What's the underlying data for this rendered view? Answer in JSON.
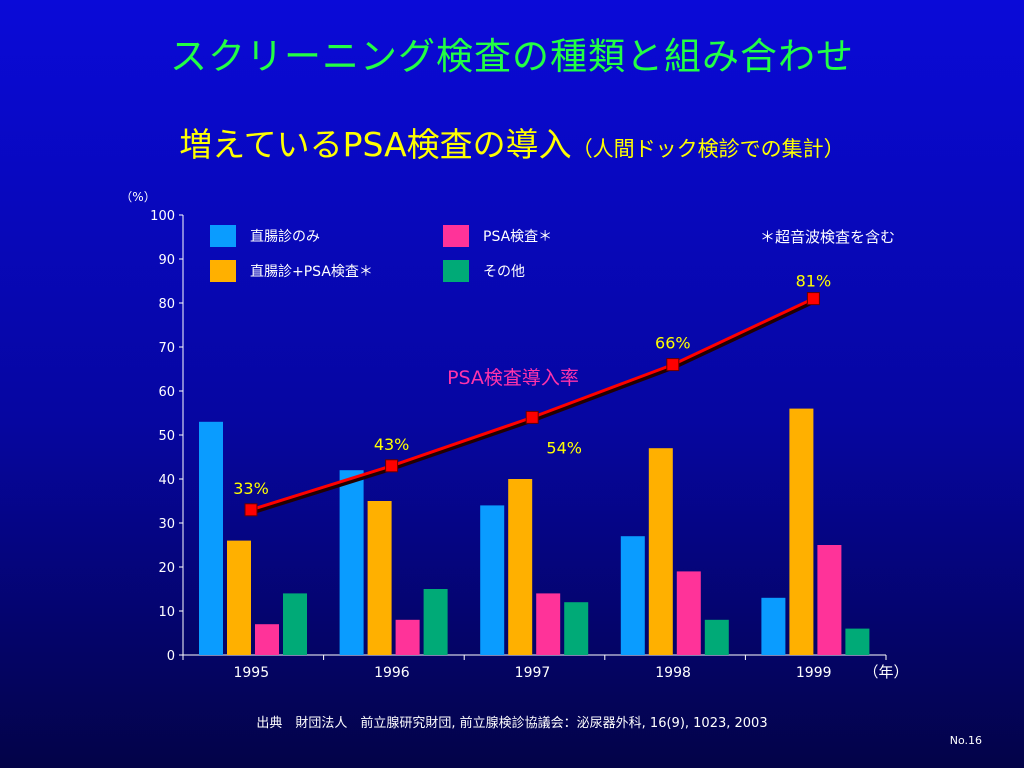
{
  "slide": {
    "title": "スクリーニング検査の種類と組み合わせ",
    "subtitle_main": "増えているPSA検査の導入",
    "subtitle_note": "（人間ドック検診での集計）",
    "source": "出典　財団法人　前立腺研究財団, 前立腺検診協議会：泌尿器外科, 16(9), 1023, 2003",
    "page_number": "No.16"
  },
  "chart_data": {
    "type": "bar",
    "categories": [
      "1995",
      "1996",
      "1997",
      "1998",
      "1999"
    ],
    "series": [
      {
        "name": "直腸診のみ",
        "color": "#0a9cff",
        "values": [
          53,
          42,
          34,
          27,
          13
        ]
      },
      {
        "name": "直腸診+PSA検査＊",
        "color": "#ffb000",
        "values": [
          26,
          35,
          40,
          47,
          56
        ]
      },
      {
        "name": "PSA検査＊",
        "color": "#ff3399",
        "values": [
          7,
          8,
          14,
          19,
          25
        ]
      },
      {
        "name": "その他",
        "color": "#00aa77",
        "values": [
          14,
          15,
          12,
          8,
          6
        ]
      }
    ],
    "line": {
      "name": "PSA検査導入率",
      "color": "#ff0000",
      "values": [
        33,
        43,
        54,
        66,
        81
      ],
      "labels": [
        "33%",
        "43%",
        "54%",
        "66%",
        "81%"
      ]
    },
    "ylim": [
      0,
      100
    ],
    "yticks": [
      0,
      10,
      20,
      30,
      40,
      50,
      60,
      70,
      80,
      90,
      100
    ],
    "ylabel": "（%）",
    "xlabel": "（年）",
    "note": "＊超音波検査を含む",
    "grid": false,
    "legend_position": "top-left"
  }
}
